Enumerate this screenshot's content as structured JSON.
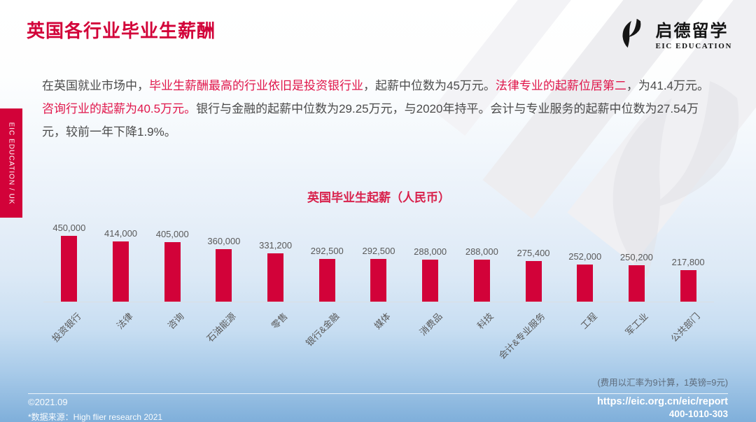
{
  "header": {
    "title": "英国各行业毕业生薪酬",
    "logo_cn": "启德留学",
    "logo_en": "EIC EDUCATION"
  },
  "sidebar_tab": "EIC EDUCATION / UK",
  "intro": {
    "segments": [
      {
        "text": "在英国就业市场中，",
        "highlight": false
      },
      {
        "text": "毕业生薪酬最高的行业依旧是投资银行业",
        "highlight": true
      },
      {
        "text": "，起薪中位数为45万元。",
        "highlight": false
      },
      {
        "text": "法律专业的起薪位居第二",
        "highlight": true
      },
      {
        "text": "，为41.4万元。",
        "highlight": false
      },
      {
        "text": "咨询行业的起薪为40.5万元。",
        "highlight": true
      },
      {
        "text": "银行与金融的起薪中位数为29.25万元，与2020年持平。会计与专业服务的起薪中位数为27.54万元，较前一年下降1.9%。",
        "highlight": false
      }
    ]
  },
  "chart_data": {
    "type": "bar",
    "title": "英国毕业生起薪（人民币）",
    "categories": [
      "投资银行",
      "法律",
      "咨询",
      "石油能源",
      "零售",
      "银行&金融",
      "媒体",
      "消费品",
      "科技",
      "会计&专业服务",
      "工程",
      "军工业",
      "公共部门"
    ],
    "values": [
      450000,
      414000,
      405000,
      360000,
      331200,
      292500,
      292500,
      288000,
      288000,
      275400,
      252000,
      250200,
      217800
    ],
    "value_labels": [
      "450,000",
      "414,000",
      "405,000",
      "360,000",
      "331,200",
      "292,500",
      "292,500",
      "288,000",
      "288,000",
      "275,400",
      "252,000",
      "250,200",
      "217,800"
    ],
    "xlabel": "",
    "ylabel": "",
    "ylim": [
      0,
      450000
    ],
    "grid": false,
    "legend_position": "none",
    "bar_color": "#D20239"
  },
  "chart_note": "(费用以汇率为9计算，1英镑=9元)",
  "footer": {
    "copyright": "©2021.09",
    "source": "*数据来源：High flier research 2021",
    "url": "https://eic.org.cn/eic/report",
    "phone": "400-1010-303"
  },
  "colors": {
    "brand_red": "#D20239",
    "chart_title_red": "#D8204B",
    "highlight_red": "#E0164B",
    "body_text": "#4B4B4B",
    "label_gray": "#595959",
    "footer_blue": "#7FAFDA"
  }
}
